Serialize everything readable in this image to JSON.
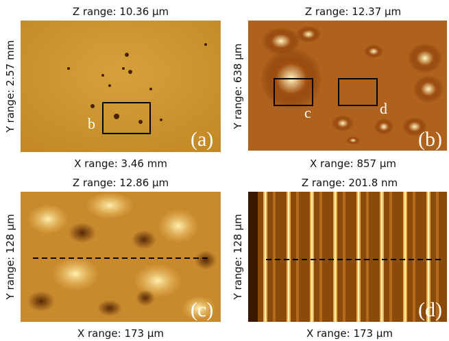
{
  "panels": [
    {
      "z_range": "Z range: 10.36 µm",
      "y_range": "Y range: 2.57 mm",
      "x_range": "X range: 3.46 mm",
      "label": "(a)",
      "box_labels": [
        "b"
      ]
    },
    {
      "z_range": "Z range: 12.37 µm",
      "y_range": "Y range: 638 µm",
      "x_range": "X range: 857 µm",
      "label": "(b)",
      "box_labels": [
        "c",
        "d"
      ]
    },
    {
      "z_range": "Z range: 12.86 µm",
      "y_range": "Y range: 128 µm",
      "x_range": "X range: 173 µm",
      "label": "(c)"
    },
    {
      "z_range": "Z range: 201.8 nm",
      "y_range": "Y range: 128 µm",
      "x_range": "X range: 173 µm",
      "label": "(d)"
    }
  ]
}
